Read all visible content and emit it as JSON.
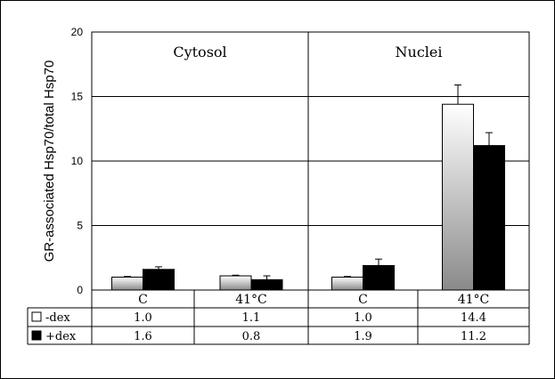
{
  "chart_data": {
    "type": "bar",
    "ylabel": "GR-associated Hsp70/total Hsp70",
    "ylim": [
      0,
      20
    ],
    "yticks": [
      0,
      5,
      10,
      15,
      20
    ],
    "grid": true,
    "panels": [
      {
        "title": "Cytosol",
        "categories": [
          "C",
          "41°C"
        ]
      },
      {
        "title": "Nuclei",
        "categories": [
          "C",
          "41°C"
        ]
      }
    ],
    "categories": [
      "C",
      "41°C",
      "C",
      "41°C"
    ],
    "series": [
      {
        "name": "-dex",
        "values": [
          1.0,
          1.1,
          1.0,
          14.4
        ],
        "errors": [
          0.05,
          0.05,
          0.05,
          1.5
        ],
        "fill": "gradient-white-gray"
      },
      {
        "name": "+dex",
        "values": [
          1.6,
          0.8,
          1.9,
          11.2
        ],
        "errors": [
          0.2,
          0.3,
          0.5,
          1.0
        ],
        "fill": "#000000"
      }
    ],
    "table": {
      "rows": [
        {
          "legend": "-dex",
          "cells": [
            "1.0",
            "1.1",
            "1.0",
            "14.4"
          ]
        },
        {
          "legend": "+dex",
          "cells": [
            "1.6",
            "0.8",
            "1.9",
            "11.2"
          ]
        }
      ]
    }
  }
}
